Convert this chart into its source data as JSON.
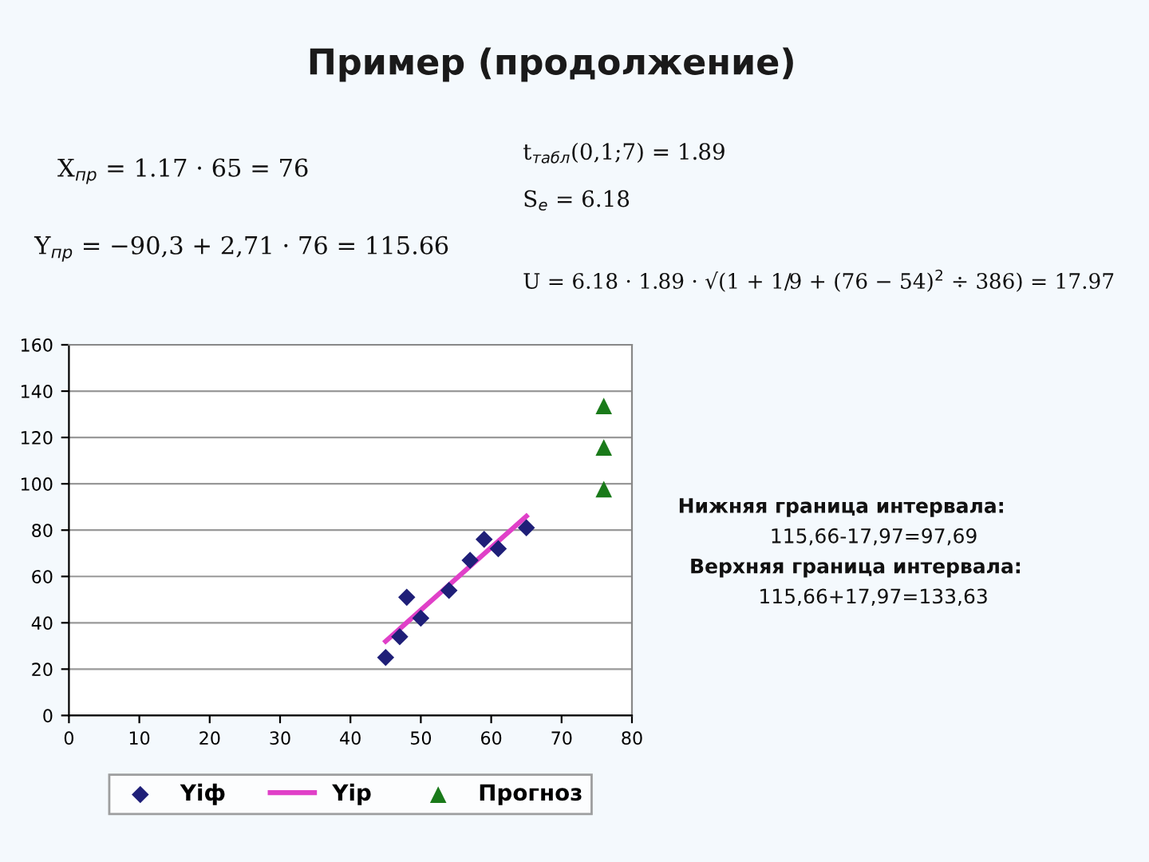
{
  "chart_data": {
    "type": "scatter",
    "title": "Пример (продолжение)",
    "annotations": [
      "X$_{пр}$ = 1.17 · 65 = 76",
      "Y$_{пр}$ = −90,3 + 2,71 · 76 = 115.66",
      "t$_{табл}$(0,1;7) = 1.89",
      "S$_{e}$ = 6.18",
      "U = 6.18 · 1.89 · √(1 + 1/9 + (76 − 54)$^{2}$ ÷ 386) = 17.97",
      "Нижняя граница интервала:",
      "115,66-17,97=97,69",
      "Верхняя граница интервала:",
      "115,66+17,97=133,63"
    ],
    "series": [
      {
        "name": "Yiф",
        "marker": "diamond",
        "color": "#1f1f78",
        "x": [
          45,
          47,
          48,
          50,
          54,
          57,
          59,
          61,
          65
        ],
        "values": [
          25,
          34,
          51,
          42,
          54,
          67,
          76,
          72,
          81
        ]
      },
      {
        "name": "Yip",
        "type": "line",
        "marker": "none",
        "color": "#e040c8",
        "x": [
          45,
          65
        ],
        "values": [
          32,
          86
        ]
      },
      {
        "name": "Прогноз",
        "marker": "triangle",
        "color": "#1a7a1a",
        "x": [
          76,
          76,
          76
        ],
        "values": [
          133.6,
          115.7,
          97.7
        ]
      }
    ],
    "xlim": [
      0,
      80
    ],
    "xticks": [
      0,
      10,
      20,
      30,
      40,
      50,
      60,
      70,
      80
    ],
    "ylim": [
      0,
      160
    ],
    "yticks": [
      0,
      20,
      40,
      60,
      80,
      100,
      120,
      140,
      160
    ],
    "grid": "y",
    "legend": "bottom"
  }
}
